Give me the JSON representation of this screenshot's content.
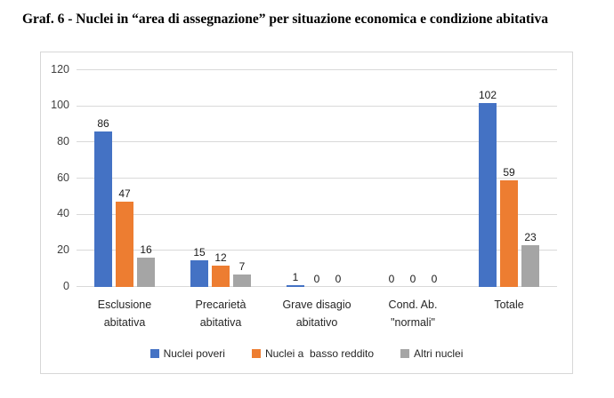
{
  "title": "Graf. 6 - Nuclei in “area di assegnazione” per situazione economica e condizione abitativa",
  "chart_data": {
    "type": "bar",
    "categories": [
      "Esclusione abitativa",
      "Precarietà abitativa",
      "Grave disagio abitativo",
      "Cond. Ab. \"normali\"",
      "Totale"
    ],
    "series": [
      {
        "name": "Nuclei poveri",
        "color": "#4472C4",
        "values": [
          86,
          15,
          1,
          0,
          102
        ]
      },
      {
        "name": "Nuclei a  basso reddito",
        "color": "#ED7D31",
        "values": [
          47,
          12,
          0,
          0,
          59
        ]
      },
      {
        "name": "Altri nuclei",
        "color": "#A5A5A5",
        "values": [
          16,
          7,
          0,
          0,
          23
        ]
      }
    ],
    "ylim": [
      0,
      120
    ],
    "yticks": [
      0,
      20,
      40,
      60,
      80,
      100,
      120
    ],
    "grid": true,
    "data_labels": true,
    "legend_position": "bottom",
    "gridline_color": "#d9d9d9"
  }
}
